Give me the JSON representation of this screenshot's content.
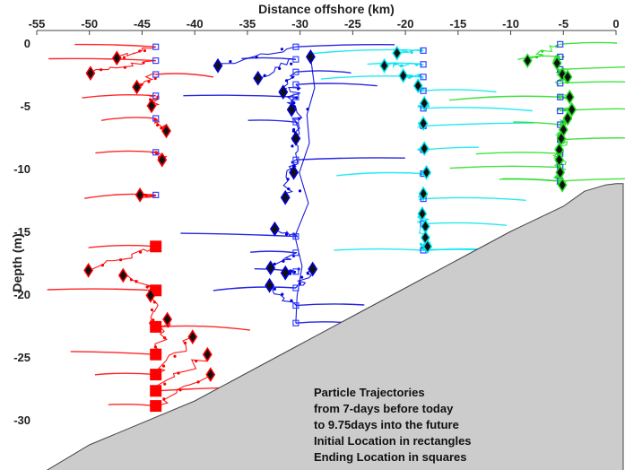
{
  "chart_data": {
    "type": "scatter",
    "xlabel": "Distance offshore (km)",
    "ylabel": "Depth (m)",
    "xlim": [
      -55,
      0
    ],
    "ylim": [
      -34,
      1
    ],
    "x_ticks": [
      -55,
      -50,
      -45,
      -40,
      -35,
      -30,
      -25,
      -20,
      -15,
      -10,
      -5,
      0
    ],
    "y_ticks": [
      0,
      -5,
      -10,
      -15,
      -20,
      -25,
      -30
    ],
    "x_axis_position": "top",
    "grid": false,
    "annotation": [
      "Particle Trajectories",
      "from 7-days before today",
      "to 9.75days into the future",
      "Initial Location in rectangles",
      "Ending Location in squares"
    ],
    "bathymetry": {
      "color": "#cccccc",
      "points": [
        [
          -54,
          -34
        ],
        [
          -50,
          -32
        ],
        [
          -40,
          -28.5
        ],
        [
          -30,
          -24
        ],
        [
          -20,
          -19.5
        ],
        [
          -10,
          -15
        ],
        [
          -5,
          -13
        ],
        [
          -3,
          -11.8
        ],
        [
          -1,
          -11.3
        ],
        [
          0,
          -11.2
        ]
      ]
    },
    "series": [
      {
        "color": "#ff0000",
        "start_marker": "square-outline",
        "end_marker": "diamond",
        "start_points": [
          [
            -43.7,
            -0.3
          ],
          [
            -43.7,
            -1.4
          ],
          [
            -43.7,
            -2.5
          ],
          [
            -43.7,
            -4.2
          ],
          [
            -43.7,
            -6.0
          ],
          [
            -43.7,
            -8.7
          ],
          [
            -43.7,
            -12.1
          ]
        ],
        "filled_squares": [
          [
            -43.7,
            -16.2
          ],
          [
            -43.7,
            -19.7
          ],
          [
            -43.7,
            -22.6
          ],
          [
            -43.7,
            -24.8
          ],
          [
            -43.7,
            -26.4
          ],
          [
            -43.7,
            -27.7
          ],
          [
            -43.7,
            -28.9
          ]
        ],
        "end_points": [
          [
            -47.4,
            -1.2
          ],
          [
            -49.9,
            -2.4
          ],
          [
            -45.5,
            -3.5
          ],
          [
            -44.1,
            -5.0
          ],
          [
            -42.7,
            -7.0
          ],
          [
            -43.1,
            -9.3
          ],
          [
            -45.2,
            -12.1
          ],
          [
            -50.1,
            -18.1
          ],
          [
            -46.8,
            -18.5
          ],
          [
            -44.2,
            -20.1
          ],
          [
            -42.6,
            -22.0
          ],
          [
            -40.2,
            -23.4
          ],
          [
            -38.8,
            -24.8
          ],
          [
            -38.5,
            -26.4
          ]
        ]
      },
      {
        "color": "#0000dd",
        "start_marker": "square-outline",
        "end_marker": "diamond",
        "start_points": [
          [
            -30.4,
            -0.3
          ],
          [
            -30.4,
            -1.3
          ],
          [
            -30.4,
            -2.3
          ],
          [
            -30.4,
            -3.3
          ],
          [
            -30.4,
            -4.3
          ],
          [
            -30.4,
            -6.3
          ],
          [
            -30.4,
            -9.3
          ],
          [
            -30.4,
            -15.4
          ],
          [
            -30.4,
            -16.7
          ],
          [
            -30.4,
            -18.2
          ],
          [
            -30.4,
            -19.5
          ],
          [
            -30.4,
            -20.9
          ],
          [
            -30.4,
            -22.3
          ]
        ],
        "end_points": [
          [
            -37.8,
            -1.8
          ],
          [
            -34.0,
            -2.8
          ],
          [
            -31.6,
            -3.9
          ],
          [
            -30.8,
            -5.3
          ],
          [
            -30.4,
            -7.6
          ],
          [
            -30.6,
            -10.3
          ],
          [
            -31.4,
            -12.3
          ],
          [
            -32.4,
            -14.8
          ],
          [
            -32.8,
            -17.9
          ],
          [
            -31.4,
            -18.3
          ],
          [
            -28.8,
            -18.0
          ],
          [
            -32.9,
            -19.3
          ],
          [
            -29.0,
            -1.1
          ]
        ]
      },
      {
        "color": "#00e5ee",
        "start_marker": "square-outline",
        "end_marker": "diamond",
        "start_points": [
          [
            -18.3,
            -0.6
          ],
          [
            -18.3,
            -1.7
          ],
          [
            -18.3,
            -2.7
          ],
          [
            -18.3,
            -3.8
          ],
          [
            -18.3,
            -5.2
          ],
          [
            -18.3,
            -6.6
          ],
          [
            -18.3,
            -8.5
          ],
          [
            -18.3,
            -10.4
          ],
          [
            -18.3,
            -12.4
          ],
          [
            -18.3,
            -14.4
          ],
          [
            -18.3,
            -16.5
          ]
        ],
        "end_points": [
          [
            -20.8,
            -0.8
          ],
          [
            -22.0,
            -1.8
          ],
          [
            -20.2,
            -2.6
          ],
          [
            -18.8,
            -3.4
          ],
          [
            -18.2,
            -4.8
          ],
          [
            -18.3,
            -6.4
          ],
          [
            -18.2,
            -8.4
          ],
          [
            -18.0,
            -10.3
          ],
          [
            -18.3,
            -12.0
          ],
          [
            -18.4,
            -13.6
          ],
          [
            -18.1,
            -14.6
          ],
          [
            -18.1,
            -15.5
          ],
          [
            -17.9,
            -16.2
          ]
        ]
      },
      {
        "color": "#22dd22",
        "start_marker": "square-outline",
        "end_marker": "diamond",
        "start_points": [
          [
            -5.3,
            -0.1
          ],
          [
            -5.3,
            -1.1
          ],
          [
            -5.3,
            -2.1
          ],
          [
            -5.3,
            -3.2
          ],
          [
            -5.3,
            -4.3
          ],
          [
            -5.3,
            -5.4
          ],
          [
            -5.3,
            -6.5
          ],
          [
            -5.3,
            -7.7
          ],
          [
            -5.3,
            -8.8
          ],
          [
            -5.3,
            -9.9
          ],
          [
            -5.3,
            -11.0
          ]
        ],
        "end_points": [
          [
            -8.4,
            -1.4
          ],
          [
            -5.6,
            -1.6
          ],
          [
            -5.1,
            -2.5
          ],
          [
            -4.6,
            -2.7
          ],
          [
            -4.4,
            -4.3
          ],
          [
            -4.2,
            -5.3
          ],
          [
            -4.6,
            -6.0
          ],
          [
            -5.0,
            -6.9
          ],
          [
            -5.2,
            -7.6
          ],
          [
            -5.4,
            -8.5
          ],
          [
            -5.4,
            -9.3
          ],
          [
            -5.3,
            -10.3
          ],
          [
            -5.1,
            -11.3
          ]
        ]
      }
    ]
  }
}
